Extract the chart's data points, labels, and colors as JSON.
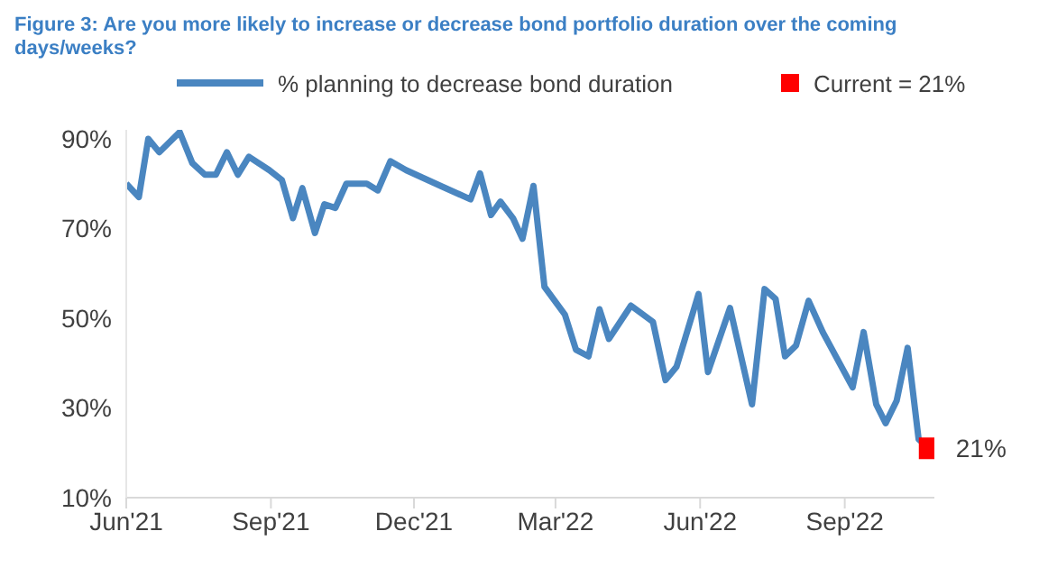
{
  "chart_data": {
    "type": "line",
    "title": "Figure 3: Are you more likely to increase or decrease bond portfolio duration over the coming days/weeks?",
    "xlim": [
      "2021-06-01",
      "2022-10-28"
    ],
    "xticks": [
      {
        "value": "2021-06-01",
        "label": "Jun'21"
      },
      {
        "value": "2021-09-01",
        "label": "Sep'21"
      },
      {
        "value": "2021-12-01",
        "label": "Dec'21"
      },
      {
        "value": "2022-03-01",
        "label": "Mar'22"
      },
      {
        "value": "2022-06-01",
        "label": "Jun'22"
      },
      {
        "value": "2022-09-01",
        "label": "Sep'22"
      }
    ],
    "ylim": [
      10,
      92
    ],
    "yticks": [
      {
        "value": 10,
        "label": "10%"
      },
      {
        "value": 30,
        "label": "30%"
      },
      {
        "value": 50,
        "label": "50%"
      },
      {
        "value": 70,
        "label": "70%"
      },
      {
        "value": 90,
        "label": "90%"
      }
    ],
    "grid": false,
    "legend": "top",
    "series": [
      {
        "name": "% planning to decrease bond duration",
        "color": "#4a86c0",
        "marker": "none",
        "line_style": "solid",
        "x": [
          "2021-06-01",
          "2021-06-09",
          "2021-06-15",
          "2021-06-22",
          "2021-07-05",
          "2021-07-13",
          "2021-07-21",
          "2021-07-28",
          "2021-08-04",
          "2021-08-11",
          "2021-08-18",
          "2021-08-31",
          "2021-09-08",
          "2021-09-15",
          "2021-09-21",
          "2021-09-29",
          "2021-10-05",
          "2021-10-12",
          "2021-10-19",
          "2021-11-01",
          "2021-11-08",
          "2021-11-16",
          "2021-11-26",
          "2021-12-18",
          "2022-01-06",
          "2022-01-12",
          "2022-01-19",
          "2022-01-25",
          "2022-02-02",
          "2022-02-08",
          "2022-02-15",
          "2022-02-22",
          "2022-03-07",
          "2022-03-14",
          "2022-03-22",
          "2022-03-29",
          "2022-04-04",
          "2022-04-18",
          "2022-05-02",
          "2022-05-10",
          "2022-05-17",
          "2022-05-31",
          "2022-06-06",
          "2022-06-20",
          "2022-07-04",
          "2022-07-12",
          "2022-07-19",
          "2022-07-25",
          "2022-08-01",
          "2022-08-09",
          "2022-08-18",
          "2022-09-06",
          "2022-09-13",
          "2022-09-21",
          "2022-09-27",
          "2022-10-04",
          "2022-10-11",
          "2022-10-18",
          "2022-10-25"
        ],
        "values": [
          80,
          77,
          90,
          87,
          91.5,
          84.6,
          82,
          82,
          87,
          82,
          86,
          83,
          80.8,
          72.3,
          79,
          69,
          75.4,
          74.6,
          80,
          80,
          78.5,
          85,
          83,
          79.5,
          76.5,
          82.3,
          73,
          76,
          72.3,
          67.7,
          79.5,
          57,
          50.8,
          43,
          41.5,
          52,
          45.4,
          52.8,
          49.2,
          36.2,
          39.2,
          55.4,
          38,
          52.3,
          30.8,
          56.5,
          54.3,
          41.5,
          43.9,
          53.9,
          46.9,
          34.6,
          46.9,
          30.8,
          26.6,
          31.6,
          43.4,
          23,
          21
        ]
      },
      {
        "name": "Current = 21%",
        "type": "scatter",
        "color": "#ff0000",
        "marker": "square",
        "x": [
          "2022-10-25"
        ],
        "values": [
          21
        ],
        "value_labels": [
          "21%"
        ]
      }
    ]
  }
}
